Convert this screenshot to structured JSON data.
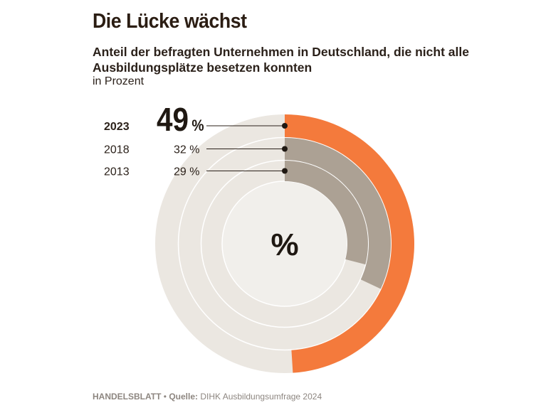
{
  "title": "Die Lücke wächst",
  "subtitle": "Anteil der befragten Unternehmen in Deutschland, die nicht alle Ausbildungsplätze besetzen konnten",
  "unit": "in Prozent",
  "center_symbol": "%",
  "footer": {
    "brand": "HANDELSBLATT",
    "separator": "•",
    "source_label": "Quelle:",
    "source": "DIHK Ausbildungsumfrage 2024"
  },
  "colors": {
    "highlight": "#f47a3c",
    "past": "#aca194",
    "track": "#ebe7e1",
    "center": "#f1efeb",
    "text": "#2b211a"
  },
  "chart_data": {
    "type": "radial-bar",
    "title": "Die Lücke wächst",
    "unit": "%",
    "max": 100,
    "rings": [
      {
        "year": "2023",
        "value": 49,
        "label": "49",
        "highlight": true
      },
      {
        "year": "2018",
        "value": 32,
        "label": "32",
        "highlight": false
      },
      {
        "year": "2013",
        "value": 29,
        "label": "29",
        "highlight": false
      }
    ]
  }
}
